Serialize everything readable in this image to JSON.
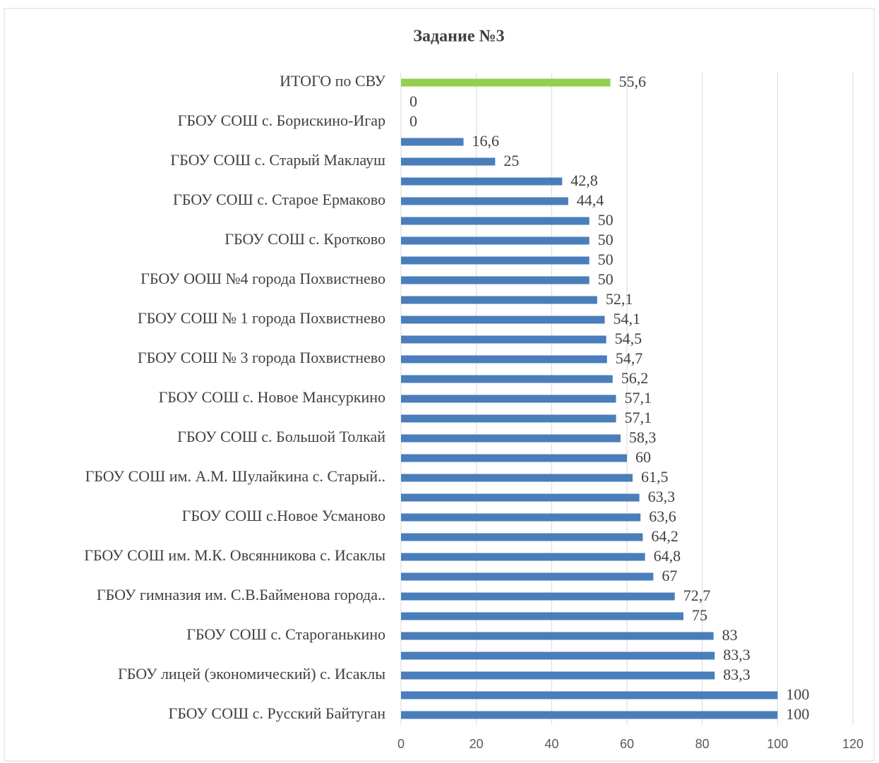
{
  "chart_data": {
    "type": "barh",
    "title": "Задание №3",
    "categories": [
      "ИТОГО по СВУ",
      null,
      "ГБОУ СОШ с. Борискино-Игар",
      null,
      "ГБОУ СОШ с. Старый Маклауш",
      null,
      "ГБОУ СОШ с. Старое Ермаково",
      null,
      "ГБОУ СОШ с. Кротково",
      null,
      "ГБОУ ООШ №4 города Похвистнево",
      null,
      "ГБОУ СОШ № 1 города Похвистнево",
      null,
      "ГБОУ СОШ № 3 города Похвистнево",
      null,
      "ГБОУ СОШ с. Новое Мансуркино",
      null,
      "ГБОУ СОШ с. Большой Толкай",
      null,
      "ГБОУ СОШ им. А.М. Шулайкина с. Старый..",
      null,
      "ГБОУ СОШ с.Новое Усманово",
      null,
      "ГБОУ СОШ им. М.К. Овсянникова с. Исаклы",
      null,
      "ГБОУ гимназия им. С.В.Байменова города..",
      null,
      "ГБОУ СОШ с. Староганькино",
      null,
      "ГБОУ лицей (экономический) с. Исаклы",
      null,
      "ГБОУ СОШ с. Русский Байтуган"
    ],
    "values": [
      55.6,
      0,
      0,
      16.6,
      25,
      42.8,
      44.4,
      50,
      50,
      50,
      50,
      52.1,
      54.1,
      54.5,
      54.7,
      56.2,
      57.1,
      57.1,
      58.3,
      60,
      61.5,
      63.3,
      63.6,
      64.2,
      64.8,
      67,
      72.7,
      75,
      83,
      83.3,
      83.3,
      100,
      100
    ],
    "value_labels": [
      "55,6",
      "0",
      "0",
      "16,6",
      "25",
      "42,8",
      "44,4",
      "50",
      "50",
      "50",
      "50",
      "52,1",
      "54,1",
      "54,5",
      "54,7",
      "56,2",
      "57,1",
      "57,1",
      "58,3",
      "60",
      "61,5",
      "63,3",
      "63,6",
      "64,2",
      "64,8",
      "67",
      "72,7",
      "75",
      "83",
      "83,3",
      "83,3",
      "100",
      "100"
    ],
    "colors": [
      "#92d050",
      "#4a7ebb",
      "#4a7ebb",
      "#4a7ebb",
      "#4a7ebb",
      "#4a7ebb",
      "#4a7ebb",
      "#4a7ebb",
      "#4a7ebb",
      "#4a7ebb",
      "#4a7ebb",
      "#4a7ebb",
      "#4a7ebb",
      "#4a7ebb",
      "#4a7ebb",
      "#4a7ebb",
      "#4a7ebb",
      "#4a7ebb",
      "#4a7ebb",
      "#4a7ebb",
      "#4a7ebb",
      "#4a7ebb",
      "#4a7ebb",
      "#4a7ebb",
      "#4a7ebb",
      "#4a7ebb",
      "#4a7ebb",
      "#4a7ebb",
      "#4a7ebb",
      "#4a7ebb",
      "#4a7ebb",
      "#4a7ebb",
      "#4a7ebb"
    ],
    "xlim": [
      0,
      120
    ],
    "xticks": [
      0,
      20,
      40,
      60,
      80,
      100,
      120
    ],
    "grid": true
  }
}
